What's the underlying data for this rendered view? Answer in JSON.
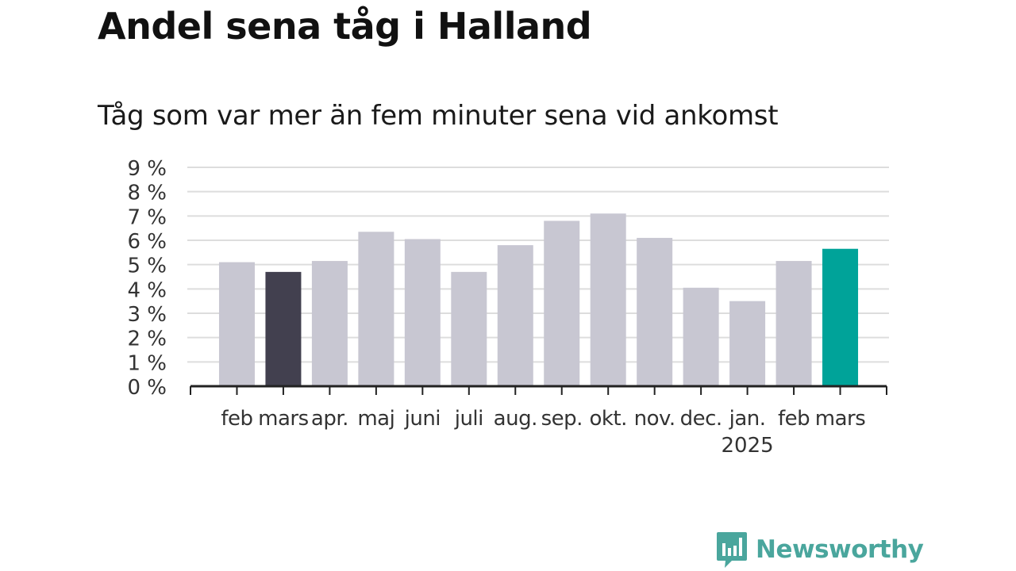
{
  "title": "Andel sena tåg i Halland",
  "subtitle": "Tåg som var mer än fem minuter sena vid ankomst",
  "brand": {
    "name": "Newsworthy"
  },
  "colors": {
    "bar_default": "#c8c7d2",
    "bar_previous_year": "#42404f",
    "bar_current": "#00a399",
    "grid": "#dddddd",
    "axis": "#222222",
    "text": "#333333"
  },
  "chart_data": {
    "type": "bar",
    "categories": [
      "feb",
      "mars",
      "apr.",
      "maj",
      "juni",
      "juli",
      "aug.",
      "sep.",
      "okt.",
      "nov.",
      "dec.",
      "jan.",
      "feb",
      "mars"
    ],
    "category_sublabels": [
      "",
      "",
      "",
      "",
      "",
      "",
      "",
      "",
      "",
      "",
      "",
      "2025",
      "",
      ""
    ],
    "values": [
      5.1,
      4.7,
      5.15,
      6.35,
      6.05,
      4.7,
      5.8,
      6.8,
      7.1,
      6.1,
      4.05,
      3.5,
      5.15,
      5.65
    ],
    "highlight": [
      "default",
      "previous_year",
      "default",
      "default",
      "default",
      "default",
      "default",
      "default",
      "default",
      "default",
      "default",
      "default",
      "default",
      "current"
    ],
    "yticks": [
      "0 %",
      "1 %",
      "2 %",
      "3 %",
      "4 %",
      "5 %",
      "6 %",
      "7 %",
      "8 %",
      "9 %"
    ],
    "ylim": [
      0,
      9
    ],
    "grid": true,
    "xlabel": "",
    "ylabel": ""
  }
}
